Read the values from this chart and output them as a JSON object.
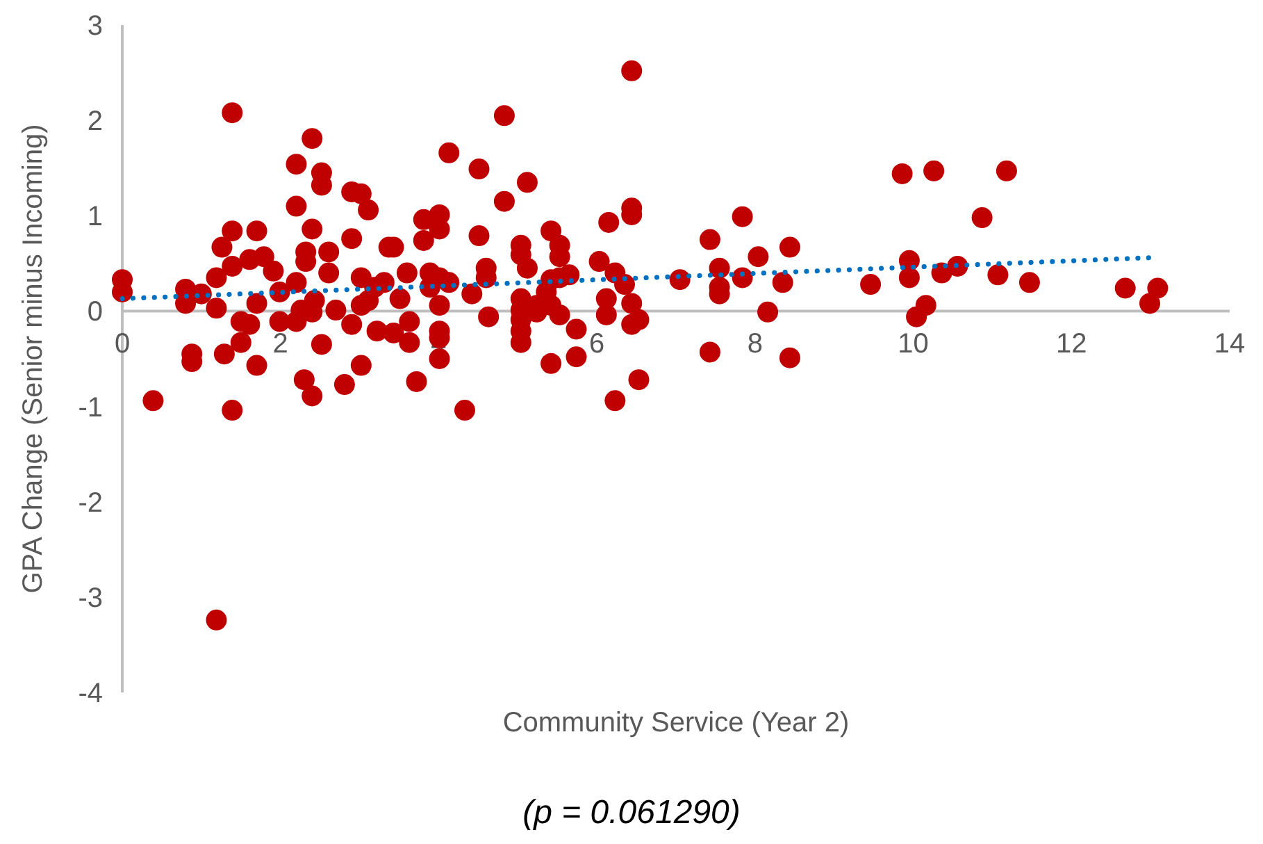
{
  "chart_data": {
    "type": "scatter",
    "xlabel": "Community Service (Year 2)",
    "ylabel": "GPA Change (Senior minus Incoming)",
    "annotations": [
      "(p = 0.061290)"
    ],
    "xlim": [
      0,
      14
    ],
    "xticks": [
      0,
      2,
      4,
      6,
      8,
      10,
      12,
      14
    ],
    "ylim": [
      -4,
      3
    ],
    "yticks": [
      -4,
      -3,
      -2,
      -1,
      0,
      1,
      2,
      3
    ],
    "grid": false,
    "marker": "circle",
    "series": [
      {
        "color": "#c00000",
        "x": [
          0,
          0,
          0.8,
          0.8,
          1.0,
          1.19,
          1.19,
          1.26,
          1.39,
          1.39,
          1.39,
          1.39,
          1.29,
          0.88,
          0.88,
          0.39,
          1.5,
          1.61,
          1.5,
          1.7,
          1.7,
          1.7,
          1.61,
          1.79,
          1.91,
          1.99,
          1.99,
          2.2,
          2.2,
          2.2,
          2.2,
          2.32,
          2.32,
          2.4,
          2.4,
          2.52,
          2.52,
          2.4,
          2.52,
          2.61,
          2.61,
          2.7,
          2.81,
          2.9,
          2.9,
          2.9,
          3.02,
          3.11,
          3.02,
          3.02,
          3.02,
          3.11,
          3.22,
          3.31,
          2.3,
          2.4,
          2.26,
          2.43,
          1.19,
          3.37,
          3.43,
          3.19,
          3.43,
          3.6,
          3.63,
          3.63,
          3.51,
          3.72,
          3.81,
          3.81,
          4.01,
          4.01,
          3.89,
          3.89,
          4.01,
          4.13,
          4.01,
          4.01,
          4.01,
          4.01,
          4.13,
          4.33,
          4.51,
          4.51,
          4.42,
          4.6,
          4.6,
          4.63,
          4.83,
          4.83,
          5.12,
          5.04,
          5.04,
          5.12,
          5.04,
          5.04,
          5.04,
          5.04,
          5.04,
          5.24,
          5.24,
          5.42,
          5.53,
          5.53,
          5.42,
          5.53,
          5.65,
          5.36,
          5.42,
          5.53,
          5.42,
          5.74,
          5.74,
          6.03,
          6.15,
          6.23,
          6.12,
          6.12,
          6.35,
          6.44,
          6.44,
          6.44,
          6.44,
          6.53,
          6.23,
          6.53,
          6.44,
          7.05,
          7.43,
          7.55,
          7.55,
          7.55,
          7.43,
          7.84,
          7.84,
          8.04,
          8.16,
          8.35,
          8.44,
          8.44,
          9.46,
          9.86,
          9.95,
          9.95,
          10.04,
          10.26,
          11.18,
          10.87,
          10.36,
          10.56,
          11.07,
          11.47,
          12.68,
          13.09,
          12.99,
          10.16
        ],
        "values": [
          0.33,
          0.2,
          0.23,
          0.08,
          0.18,
          0.35,
          0.03,
          0.67,
          0.84,
          0.47,
          2.08,
          -1.04,
          -0.45,
          -0.45,
          -0.53,
          -0.94,
          -0.11,
          -0.14,
          -0.33,
          -0.57,
          0.08,
          0.84,
          0.54,
          0.57,
          0.42,
          0.2,
          -0.11,
          -0.11,
          0.3,
          1.54,
          1.1,
          0.62,
          0.52,
          1.81,
          0.86,
          1.45,
          1.32,
          -0.01,
          -0.35,
          0.62,
          0.4,
          0.01,
          -0.77,
          0.76,
          -0.14,
          1.25,
          1.23,
          1.06,
          0.35,
          -0.57,
          0.06,
          0.11,
          -0.21,
          0.3,
          -0.72,
          -0.89,
          0.01,
          0.11,
          -3.24,
          0.67,
          0.67,
          0.25,
          -0.23,
          0.4,
          -0.11,
          -0.33,
          0.13,
          -0.74,
          0.96,
          0.74,
          1.01,
          0.86,
          0.4,
          0.25,
          0.35,
          0.3,
          0.06,
          -0.21,
          -0.28,
          -0.5,
          1.66,
          -1.04,
          1.49,
          0.79,
          0.18,
          0.45,
          0.35,
          -0.06,
          2.05,
          1.15,
          1.35,
          0.69,
          0.59,
          0.45,
          0.13,
          0.01,
          -0.09,
          -0.21,
          -0.33,
          0.06,
          -0.01,
          0.84,
          0.69,
          0.57,
          0.33,
          0.35,
          0.38,
          0.2,
          0.06,
          -0.04,
          -0.55,
          -0.19,
          -0.48,
          0.52,
          0.93,
          0.4,
          0.13,
          -0.04,
          0.28,
          1.08,
          1.01,
          0.08,
          -0.14,
          -0.09,
          -0.94,
          -0.72,
          2.52,
          0.33,
          0.75,
          0.45,
          0.25,
          0.18,
          -0.43,
          0.99,
          0.35,
          0.57,
          -0.01,
          0.3,
          0.67,
          -0.49,
          0.28,
          1.44,
          0.53,
          0.35,
          -0.06,
          1.47,
          1.47,
          0.98,
          0.4,
          0.47,
          0.38,
          0.3,
          0.24,
          0.24,
          0.08,
          0.06
        ]
      },
      {
        "type": "line",
        "color": "#0070c0",
        "line_style": "dotted",
        "marker": "none",
        "x": [
          0,
          13
        ],
        "values": [
          0.13,
          0.56
        ]
      }
    ]
  }
}
